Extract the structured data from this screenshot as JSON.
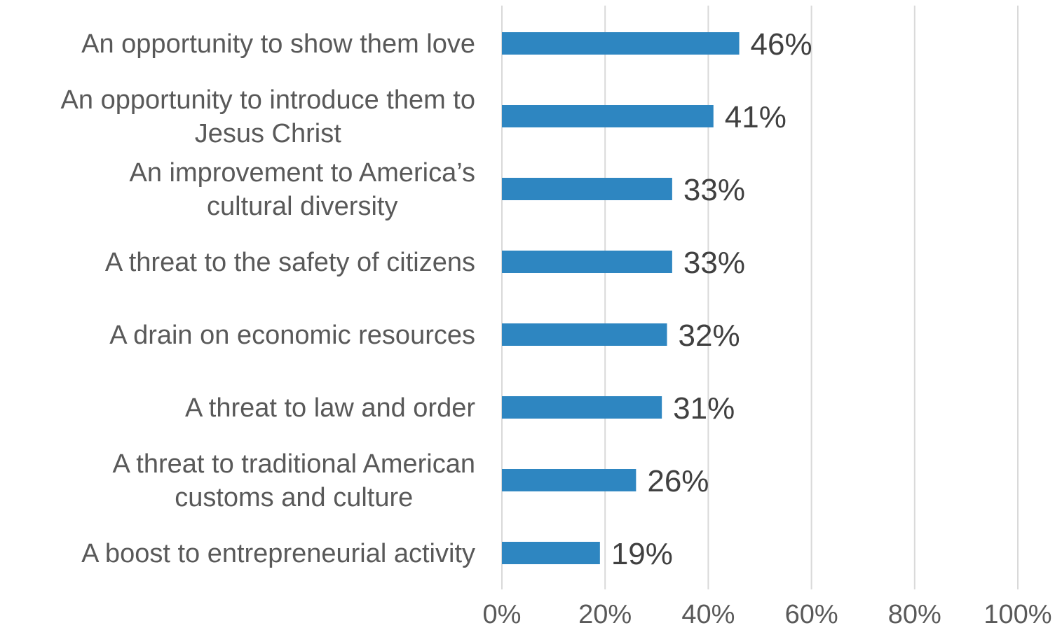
{
  "chart_data": {
    "type": "bar",
    "orientation": "horizontal",
    "categories": [
      "An opportunity to show them love",
      "An opportunity to introduce them to Jesus Christ",
      "An improvement to America’s cultural diversity",
      "A threat to the safety of citizens",
      "A drain on economic resources",
      "A threat to law and order",
      "A threat to traditional American customs and culture",
      "A boost to entrepreneurial activity"
    ],
    "category_lines": [
      [
        "An opportunity to show them love"
      ],
      [
        "An opportunity to introduce them to",
        "Jesus Christ"
      ],
      [
        "An improvement to America’s",
        "cultural diversity"
      ],
      [
        "A threat to the safety of citizens"
      ],
      [
        "A drain on economic resources"
      ],
      [
        "A threat to law and order"
      ],
      [
        "A threat to traditional American",
        "customs and culture"
      ],
      [
        "A boost to entrepreneurial activity"
      ]
    ],
    "values": [
      46,
      41,
      33,
      33,
      32,
      31,
      26,
      19
    ],
    "value_labels": [
      "46%",
      "41%",
      "33%",
      "33%",
      "32%",
      "31%",
      "26%",
      "19%"
    ],
    "xlim": [
      0,
      100
    ],
    "xticks": [
      0,
      20,
      40,
      60,
      80,
      100
    ],
    "xtick_labels": [
      "0%",
      "20%",
      "40%",
      "60%",
      "80%",
      "100%"
    ],
    "title": "",
    "xlabel": "",
    "ylabel": "",
    "grid": "vertical",
    "legend": "none",
    "colors": {
      "bar": "#2e86c1",
      "gridline": "#d9d9d9",
      "category_text": "#595959",
      "value_text": "#404040",
      "tick_text": "#595959"
    }
  }
}
